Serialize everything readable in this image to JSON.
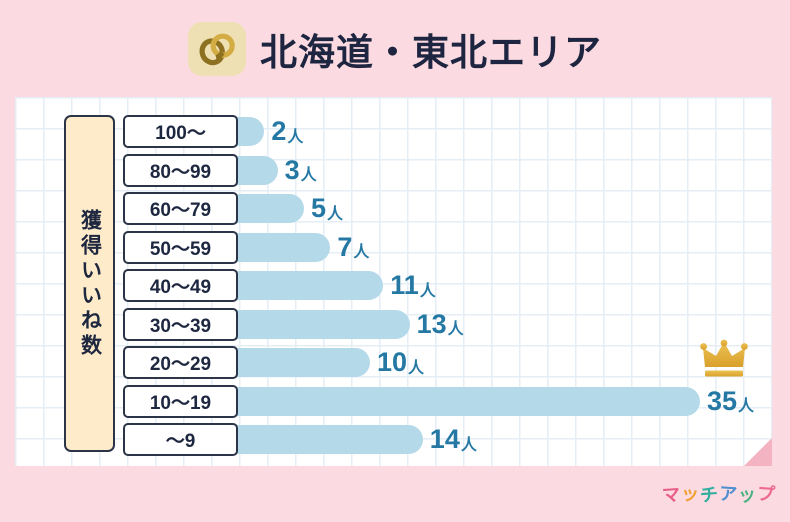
{
  "header": {
    "title": "北海道・東北エリア",
    "icon": "wedding-rings"
  },
  "chart_data": {
    "type": "bar",
    "orientation": "horizontal",
    "title": "北海道・東北エリア",
    "ylabel": "獲得いいね数",
    "xlabel": "",
    "categories": [
      "100〜",
      "80〜99",
      "60〜79",
      "50〜59",
      "40〜49",
      "30〜39",
      "20〜29",
      "10〜19",
      "〜9"
    ],
    "values": [
      2,
      3,
      5,
      7,
      11,
      13,
      10,
      35,
      14
    ],
    "unit": "人",
    "value_labels": [
      "2人",
      "3人",
      "5人",
      "7人",
      "11人",
      "13人",
      "10人",
      "35人",
      "14人"
    ],
    "highlight": {
      "category": "10〜19",
      "value": 35,
      "marker": "crown"
    },
    "xlim": [
      0,
      40
    ],
    "grid": true,
    "legend": false
  },
  "footer": {
    "logo_text": "マッチアップ",
    "logo_colors": [
      "#e85c8a",
      "#f0a02e",
      "#2fae9e",
      "#4f8fd0",
      "#4ab183",
      "#ee6a8e"
    ]
  },
  "colors": {
    "background": "#fbdbe1",
    "card": "#ffffff",
    "grid_line": "#e4eef4",
    "bar": "#b4d9e9",
    "value_text": "#2478a3",
    "title_text": "#1d2540",
    "box_border": "#2c3547",
    "axis_box_fill": "#fdebc9",
    "crown_gold": "#e2ac33",
    "fold": "#f3b3c0",
    "badge": "#eee0b3"
  }
}
